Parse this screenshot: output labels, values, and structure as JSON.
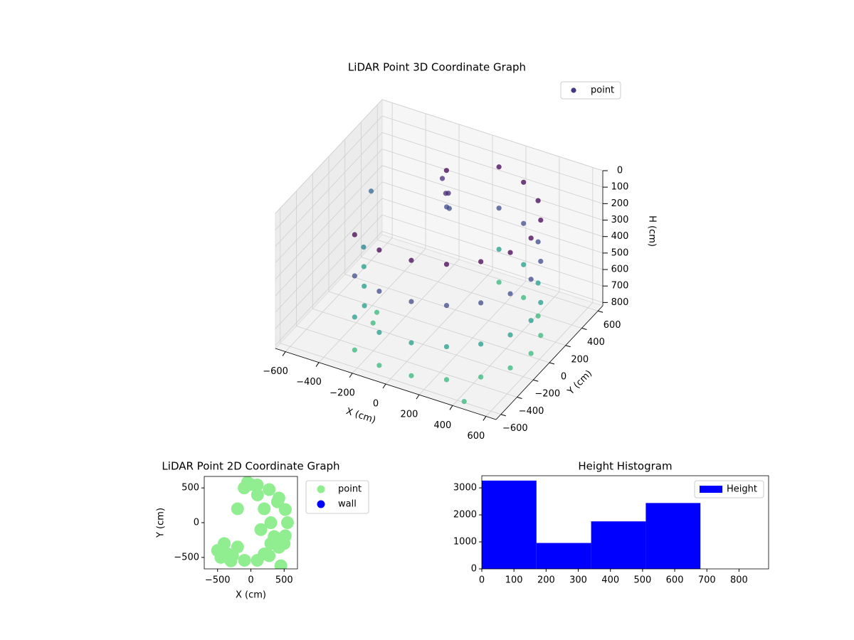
{
  "chart_data": [
    {
      "type": "scatter3d",
      "title": "LiDAR Point 3D Coordinate Graph",
      "xlabel": "X (cm)",
      "ylabel": "Y (cm)",
      "zlabel": "H (cm)",
      "xlim": [
        -660,
        660
      ],
      "ylim": [
        -660,
        660
      ],
      "zlim": [
        0,
        820
      ],
      "zinvert": true,
      "xticks": [
        {
          "value": -600,
          "label": "−600"
        },
        {
          "value": -400,
          "label": "−400"
        },
        {
          "value": -200,
          "label": "−200"
        },
        0,
        200,
        400,
        600
      ],
      "yticks": [
        {
          "value": -600,
          "label": "−600"
        },
        {
          "value": -400,
          "label": "−400"
        },
        {
          "value": -200,
          "label": "−200"
        },
        0,
        200,
        400,
        600
      ],
      "zticks": [
        0,
        100,
        200,
        300,
        400,
        500,
        600,
        700,
        800
      ],
      "colormap": "viridis",
      "legend": "upper right",
      "series": [
        {
          "name": "point",
          "color": "#453781",
          "x": [
            -275,
            -275,
            -275,
            -275,
            -96,
            -96,
            -96,
            -96,
            96,
            96,
            96,
            96,
            275,
            275,
            275,
            275,
            421,
            421,
            421,
            421,
            517,
            517,
            517,
            517,
            550,
            550,
            550,
            550,
            517,
            517,
            517,
            517,
            421,
            421,
            421,
            421,
            275,
            275,
            275,
            275,
            96,
            96,
            96,
            96,
            -150,
            -120,
            -100,
            -80,
            -130,
            -60,
            -400,
            -350,
            -450,
            -300,
            -250,
            -500,
            -600,
            450
          ],
          "y": [
            -476,
            -476,
            -476,
            -476,
            -542,
            -542,
            -542,
            -542,
            -542,
            -542,
            -542,
            -542,
            -476,
            -476,
            -476,
            -476,
            -354,
            -354,
            -354,
            -354,
            -188,
            -188,
            -188,
            -188,
            0,
            0,
            0,
            0,
            188,
            188,
            188,
            188,
            354,
            354,
            354,
            354,
            476,
            476,
            476,
            476,
            542,
            542,
            542,
            542,
            350,
            330,
            300,
            280,
            360,
            250,
            -100,
            -200,
            0,
            -150,
            -300,
            100,
            400,
            -620
          ],
          "z": [
            100,
            350,
            600,
            800,
            100,
            350,
            600,
            800,
            100,
            350,
            600,
            800,
            100,
            350,
            600,
            800,
            100,
            350,
            600,
            800,
            100,
            350,
            600,
            800,
            100,
            350,
            600,
            800,
            100,
            350,
            600,
            800,
            100,
            350,
            600,
            800,
            100,
            350,
            600,
            800,
            100,
            350,
            600,
            800,
            150,
            220,
            280,
            180,
            100,
            250,
            650,
            700,
            600,
            750,
            720,
            550,
            400,
            800
          ]
        }
      ]
    },
    {
      "type": "scatter",
      "title": "LiDAR Point 2D Coordinate Graph",
      "xlabel": "X (cm)",
      "ylabel": "Y (cm)",
      "xlim": [
        -700,
        700
      ],
      "ylim": [
        -665,
        665
      ],
      "xticks": [
        {
          "value": -500,
          "label": "−500"
        },
        0,
        500
      ],
      "yticks": [
        {
          "value": -500,
          "label": "−500"
        },
        0,
        500
      ],
      "legend": "outside right",
      "series": [
        {
          "name": "point",
          "color": "#90ee90",
          "x": [
            -275,
            -96,
            96,
            275,
            421,
            517,
            550,
            517,
            421,
            275,
            96,
            300,
            200,
            300,
            400,
            100,
            200,
            -400,
            -450,
            -300,
            -500,
            -200,
            -100,
            0,
            -200,
            -350,
            450,
            350,
            150,
            -50,
            500
          ],
          "y": [
            -476,
            -542,
            -542,
            -476,
            -354,
            -188,
            0,
            188,
            354,
            476,
            542,
            0,
            200,
            -300,
            300,
            400,
            -450,
            -300,
            -500,
            -550,
            -400,
            -350,
            500,
            550,
            200,
            -450,
            -620,
            -200,
            -100,
            580,
            -300
          ]
        },
        {
          "name": "wall",
          "color": "#0000ff",
          "x": [],
          "y": []
        }
      ]
    },
    {
      "type": "histogram",
      "title": "Height Histogram",
      "bins": [
        0,
        170,
        340,
        510,
        680,
        850
      ],
      "counts": [
        3270,
        960,
        1760,
        2440,
        0
      ],
      "xlim": [
        0,
        892
      ],
      "ylim": [
        0,
        3450
      ],
      "xticks": [
        0,
        100,
        200,
        300,
        400,
        500,
        600,
        700,
        800
      ],
      "yticks": [
        0,
        1000,
        2000,
        3000
      ],
      "legend": "upper right",
      "series": [
        {
          "name": "Height",
          "color": "#0000ff"
        }
      ]
    }
  ]
}
